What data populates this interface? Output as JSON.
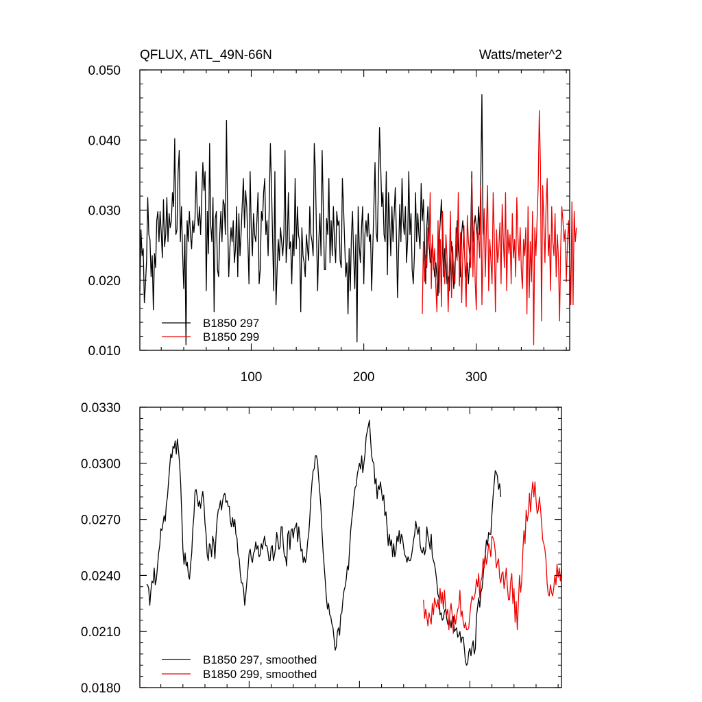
{
  "chart_data": [
    {
      "type": "line",
      "title_left": "QFLUX, ATL_49N-66N",
      "title_right": "Watts/meter^2",
      "xlim": [
        1,
        383
      ],
      "ylim": [
        0.01,
        0.05
      ],
      "yticks": [
        "0.010",
        "0.020",
        "0.030",
        "0.040",
        "0.050"
      ],
      "xticks": [
        "100",
        "200",
        "300"
      ],
      "xtick_values": [
        100,
        200,
        300
      ],
      "legend_location": "bottom-left",
      "series": [
        {
          "name": "B1850 297",
          "color": "#000000",
          "x_start": 1,
          "values": [
            0.0185,
            0.0272,
            0.0235,
            0.0245,
            0.0168,
            0.0195,
            0.0228,
            0.0318,
            0.0265,
            0.0258,
            0.0205,
            0.0235,
            0.0158,
            0.0238,
            0.0218,
            0.0285,
            0.0298,
            0.0255,
            0.0298,
            0.0268,
            0.0232,
            0.0315,
            0.0248,
            0.0265,
            0.0318,
            0.0255,
            0.0295,
            0.0275,
            0.0285,
            0.0325,
            0.0305,
            0.0402,
            0.0265,
            0.0272,
            0.0355,
            0.0385,
            0.0255,
            0.0305,
            0.0238,
            0.0188,
            0.0265,
            0.0108,
            0.0285,
            0.0255,
            0.0298,
            0.0265,
            0.0245,
            0.0285,
            0.0268,
            0.0288,
            0.0355,
            0.0298,
            0.0278,
            0.0305,
            0.0265,
            0.0318,
            0.0368,
            0.0328,
            0.0355,
            0.0185,
            0.0298,
            0.0238,
            0.0395,
            0.0278,
            0.0255,
            0.0318,
            0.0155,
            0.0288,
            0.0298,
            0.0215,
            0.0205,
            0.0265,
            0.0298,
            0.0255,
            0.0315,
            0.0308,
            0.0265,
            0.0428,
            0.0285,
            0.0205,
            0.0245,
            0.0275,
            0.0255,
            0.0285,
            0.0225,
            0.0245,
            0.0305,
            0.0205,
            0.0295,
            0.0235,
            0.0268,
            0.0308,
            0.0345,
            0.0275,
            0.0328,
            0.0305,
            0.0255,
            0.0195,
            0.0355,
            0.0275,
            0.0235,
            0.0295,
            0.0265,
            0.0255,
            0.0285,
            0.0325,
            0.0195,
            0.0215,
            0.0298,
            0.0285,
            0.0325,
            0.0345,
            0.0265,
            0.0285,
            0.0235,
            0.0305,
            0.0395,
            0.0335,
            0.0255,
            0.0185,
            0.0355,
            0.0165,
            0.0215,
            0.0258,
            0.0228,
            0.0275,
            0.0255,
            0.0235,
            0.0265,
            0.0385,
            0.0225,
            0.0255,
            0.0325,
            0.0245,
            0.0255,
            0.0195,
            0.0265,
            0.0235,
            0.0345,
            0.0245,
            0.0305,
            0.0265,
            0.0255,
            0.0155,
            0.0275,
            0.0235,
            0.0225,
            0.0205,
            0.0265,
            0.0245,
            0.0228,
            0.0305,
            0.0265,
            0.0255,
            0.0235,
            0.0395,
            0.0355,
            0.0265,
            0.0185,
            0.0255,
            0.0295,
            0.0235,
            0.0385,
            0.0305,
            0.0215,
            0.0215,
            0.0288,
            0.0265,
            0.0345,
            0.0225,
            0.0285,
            0.0235,
            0.0305,
            0.0255,
            0.0225,
            0.0298,
            0.0278,
            0.0285,
            0.0228,
            0.0218,
            0.0345,
            0.0305,
            0.0255,
            0.0205,
            0.0225,
            0.0152,
            0.0245,
            0.0185,
            0.0262,
            0.0298,
            0.0235,
            0.0188,
            0.0265,
            0.0112,
            0.0305,
            0.0248,
            0.0225,
            0.0275,
            0.0305,
            0.0195,
            0.0265,
            0.0285,
            0.0262,
            0.0295,
            0.0255,
            0.0265,
            0.0185,
            0.0245,
            0.0305,
            0.0368,
            0.0268,
            0.0255,
            0.0335,
            0.0418,
            0.0365,
            0.0305,
            0.0325,
            0.0265,
            0.0255,
            0.0355,
            0.0208,
            0.0325,
            0.0285,
            0.0235,
            0.0305,
            0.0255,
            0.0295,
            0.0332,
            0.0265,
            0.0175,
            0.0245,
            0.0308,
            0.0255,
            0.0345,
            0.0285,
            0.0265,
            0.0305,
            0.0225,
            0.0258,
            0.0355,
            0.0265,
            0.0295,
            0.0215,
            0.0195,
            0.0235,
            0.0325,
            0.0255,
            0.0295,
            0.0265,
            0.0245,
            0.0338,
            0.0285,
            0.0315,
            0.0255,
            0.0195,
            0.0275,
            0.0305,
            0.0255,
            0.0225,
            0.0235,
            0.0255,
            0.0225,
            0.0205,
            0.0225,
            0.0205,
            0.0178,
            0.0255,
            0.0285,
            0.0315,
            0.0255,
            0.0205,
            0.0245,
            0.0225,
            0.0195,
            0.0205,
            0.0185,
            0.0225,
            0.0255,
            0.0225,
            0.0188,
            0.0225,
            0.0235,
            0.0285,
            0.0245,
            0.0225,
            0.0205,
            0.0268,
            0.0285,
            0.0255,
            0.0225,
            0.0205,
            0.0225,
            0.0195,
            0.0225,
            0.0265,
            0.0355,
            0.0255,
            0.0275,
            0.0292,
            0.0278,
            0.0258,
            0.0305,
            0.0265,
            0.0345,
            0.0465,
            0.0265
          ]
        },
        {
          "name": "B1850 299",
          "color": "#ee0000",
          "x_start": 252,
          "values": [
            0.0152,
            0.0255,
            0.0198,
            0.0235,
            0.0218,
            0.0275,
            0.0245,
            0.0325,
            0.0188,
            0.0265,
            0.0215,
            0.0245,
            0.0192,
            0.0155,
            0.0285,
            0.0182,
            0.0258,
            0.0162,
            0.0298,
            0.0225,
            0.0195,
            0.0265,
            0.0232,
            0.0155,
            0.0218,
            0.0298,
            0.0175,
            0.0248,
            0.0205,
            0.0195,
            0.0275,
            0.0228,
            0.0325,
            0.0192,
            0.0268,
            0.0168,
            0.0235,
            0.0278,
            0.0215,
            0.0162,
            0.0292,
            0.0255,
            0.0238,
            0.0218,
            0.0345,
            0.0205,
            0.0285,
            0.0198,
            0.0158,
            0.0275,
            0.0265,
            0.0232,
            0.0335,
            0.0165,
            0.0248,
            0.0302,
            0.0205,
            0.0275,
            0.0335,
            0.0185,
            0.0258,
            0.0228,
            0.0195,
            0.0325,
            0.0262,
            0.0155,
            0.0272,
            0.0225,
            0.0245,
            0.0282,
            0.0195,
            0.0308,
            0.0258,
            0.0218,
            0.0325,
            0.0185,
            0.0272,
            0.0238,
            0.0265,
            0.0195,
            0.0295,
            0.0232,
            0.0258,
            0.0205,
            0.0318,
            0.0262,
            0.0228,
            0.0275,
            0.0215,
            0.0188,
            0.0258,
            0.0235,
            0.0275,
            0.0152,
            0.0305,
            0.0175,
            0.0255,
            0.0198,
            0.0298,
            0.0108,
            0.0275,
            0.0235,
            0.0285,
            0.0335,
            0.0442,
            0.0365,
            0.0142,
            0.0335,
            0.0285,
            0.0225,
            0.0305,
            0.0345,
            0.0235,
            0.0265,
            0.0185,
            0.0305,
            0.0255,
            0.0235,
            0.0295,
            0.0205,
            0.0265,
            0.0232,
            0.0142,
            0.0245,
            0.0305,
            0.0285,
            0.0255,
            0.0272,
            0.0198,
            0.0252,
            0.0285,
            0.0235,
            0.0165,
            0.0312,
            0.0165,
            0.0298,
            0.0255,
            0.0275
          ]
        }
      ]
    },
    {
      "type": "line",
      "xlim": [
        1,
        383
      ],
      "ylim": [
        0.018,
        0.033
      ],
      "yticks": [
        "0.0180",
        "0.0210",
        "0.0240",
        "0.0270",
        "0.0300",
        "0.0330"
      ],
      "xtick_values": [
        100,
        200,
        300
      ],
      "legend_location": "bottom-left",
      "series": [
        {
          "name": "B1850 297, smoothed",
          "color": "#000000",
          "x_start": 7,
          "values": [
            0.0235,
            0.0235,
            0.0233,
            0.0224,
            0.0232,
            0.0237,
            0.0236,
            0.0244,
            0.0235,
            0.0238,
            0.0245,
            0.0252,
            0.0256,
            0.0265,
            0.0264,
            0.0268,
            0.0272,
            0.0269,
            0.0278,
            0.0282,
            0.029,
            0.0298,
            0.0305,
            0.0303,
            0.0309,
            0.0308,
            0.0312,
            0.0305,
            0.0313,
            0.0307,
            0.03,
            0.0289,
            0.0272,
            0.0254,
            0.0246,
            0.0252,
            0.0245,
            0.0247,
            0.024,
            0.0238,
            0.0246,
            0.0252,
            0.0265,
            0.0272,
            0.0285,
            0.0286,
            0.0282,
            0.0277,
            0.028,
            0.0276,
            0.0281,
            0.0285,
            0.0279,
            0.0268,
            0.0262,
            0.0251,
            0.0248,
            0.0257,
            0.0256,
            0.025,
            0.0261,
            0.0258,
            0.0249,
            0.0261,
            0.027,
            0.0275,
            0.0276,
            0.028,
            0.0275,
            0.028,
            0.0283,
            0.0284,
            0.0279,
            0.028,
            0.0277,
            0.0277,
            0.0269,
            0.0266,
            0.0271,
            0.0266,
            0.027,
            0.0262,
            0.026,
            0.0251,
            0.0249,
            0.0241,
            0.0236,
            0.0236,
            0.0232,
            0.0224,
            0.023,
            0.0237,
            0.0244,
            0.0252,
            0.0254,
            0.0249,
            0.0247,
            0.0252,
            0.0253,
            0.0258,
            0.0254,
            0.0256,
            0.025,
            0.0251,
            0.0257,
            0.0254,
            0.0258,
            0.0261,
            0.0256,
            0.0256,
            0.0253,
            0.0248,
            0.0248,
            0.0255,
            0.0256,
            0.0248,
            0.0251,
            0.0255,
            0.0263,
            0.0259,
            0.0254,
            0.0255,
            0.0266,
            0.0266,
            0.0256,
            0.025,
            0.025,
            0.0245,
            0.0262,
            0.0264,
            0.0254,
            0.0264,
            0.0265,
            0.026,
            0.0265,
            0.0266,
            0.0268,
            0.0258,
            0.0266,
            0.026,
            0.0253,
            0.0254,
            0.0247,
            0.025,
            0.0247,
            0.025,
            0.0258,
            0.0262,
            0.0271,
            0.0282,
            0.029,
            0.0296,
            0.0297,
            0.0304,
            0.0304,
            0.0301,
            0.0292,
            0.0285,
            0.0277,
            0.0264,
            0.0253,
            0.0245,
            0.0237,
            0.0228,
            0.0222,
            0.0225,
            0.0219,
            0.0218,
            0.0214,
            0.0212,
            0.0206,
            0.02,
            0.0202,
            0.021,
            0.0212,
            0.0208,
            0.0219,
            0.022,
            0.0227,
            0.0232,
            0.0234,
            0.0238,
            0.0245,
            0.0243,
            0.0254,
            0.0264,
            0.027,
            0.0275,
            0.0282,
            0.0287,
            0.0288,
            0.0294,
            0.0297,
            0.03,
            0.0297,
            0.0304,
            0.0295,
            0.03,
            0.0305,
            0.0314,
            0.0317,
            0.032,
            0.0323,
            0.0313,
            0.0304,
            0.0301,
            0.03,
            0.0289,
            0.0292,
            0.0281,
            0.0288,
            0.0286,
            0.029,
            0.0285,
            0.028,
            0.0283,
            0.0272,
            0.0274,
            0.0266,
            0.0256,
            0.0262,
            0.0256,
            0.0259,
            0.025,
            0.0257,
            0.025,
            0.0253,
            0.0261,
            0.0258,
            0.0264,
            0.0257,
            0.0262,
            0.026,
            0.0255,
            0.0251,
            0.025,
            0.0247,
            0.025,
            0.0248,
            0.0248,
            0.025,
            0.0254,
            0.0259,
            0.0262,
            0.0269,
            0.0265,
            0.0262,
            0.0266,
            0.0256,
            0.0253,
            0.0252,
            0.0255,
            0.0251,
            0.0254,
            0.0266,
            0.0261,
            0.0258,
            0.0254,
            0.0262,
            0.025,
            0.0248,
            0.0246,
            0.0242,
            0.0237,
            0.023,
            0.0228,
            0.0219,
            0.022,
            0.0216,
            0.0217,
            0.0221,
            0.0222,
            0.0217,
            0.0214,
            0.0213,
            0.0216,
            0.0212,
            0.0217,
            0.0218,
            0.021,
            0.0211,
            0.0212,
            0.0207,
            0.0208,
            0.021,
            0.0204,
            0.0207,
            0.0207,
            0.0201,
            0.0194,
            0.0192,
            0.0193,
            0.0199,
            0.0201,
            0.0197,
            0.0202,
            0.0205,
            0.0198,
            0.0201,
            0.0218,
            0.0223,
            0.0228,
            0.0223,
            0.0231,
            0.0233,
            0.0239,
            0.0247,
            0.0251,
            0.0259,
            0.0256,
            0.0263,
            0.0262,
            0.0262,
            0.0273,
            0.0282,
            0.0289,
            0.0296,
            0.0295,
            0.0293,
            0.0286,
            0.0289,
            0.0282
          ]
        },
        {
          "name": "B1850 299, smoothed",
          "color": "#ee0000",
          "x_start": 258,
          "values": [
            0.0227,
            0.0217,
            0.0222,
            0.0218,
            0.0213,
            0.022,
            0.0217,
            0.0214,
            0.0225,
            0.0219,
            0.0228,
            0.0225,
            0.0223,
            0.0227,
            0.0222,
            0.0233,
            0.0225,
            0.0231,
            0.0222,
            0.0232,
            0.0223,
            0.0219,
            0.0222,
            0.0211,
            0.0221,
            0.0225,
            0.0219,
            0.0209,
            0.0219,
            0.0214,
            0.0218,
            0.0222,
            0.0223,
            0.0232,
            0.0218,
            0.0221,
            0.0215,
            0.0212,
            0.0215,
            0.0211,
            0.0211,
            0.0212,
            0.0219,
            0.0225,
            0.0229,
            0.0227,
            0.0228,
            0.0231,
            0.0238,
            0.0234,
            0.0241,
            0.0228,
            0.0237,
            0.0239,
            0.0249,
            0.0244,
            0.0252,
            0.0246,
            0.025,
            0.0257,
            0.0255,
            0.025,
            0.0261,
            0.026,
            0.0258,
            0.0253,
            0.0244,
            0.0247,
            0.0249,
            0.0239,
            0.0236,
            0.0241,
            0.0242,
            0.0233,
            0.0238,
            0.0244,
            0.0234,
            0.0227,
            0.0227,
            0.0237,
            0.0241,
            0.0225,
            0.0233,
            0.0215,
            0.0226,
            0.0211,
            0.0226,
            0.024,
            0.0231,
            0.0237,
            0.0253,
            0.0264,
            0.0257,
            0.0275,
            0.0269,
            0.0273,
            0.0284,
            0.0274,
            0.0284,
            0.029,
            0.0282,
            0.029,
            0.028,
            0.0273,
            0.0275,
            0.0282,
            0.0276,
            0.0268,
            0.0259,
            0.0257,
            0.0254,
            0.0248,
            0.0236,
            0.023,
            0.0229,
            0.0235,
            0.0231,
            0.0229,
            0.0233,
            0.024,
            0.0235,
            0.0246,
            0.0239,
            0.0244,
            0.0237,
            0.0244
          ]
        }
      ]
    }
  ]
}
